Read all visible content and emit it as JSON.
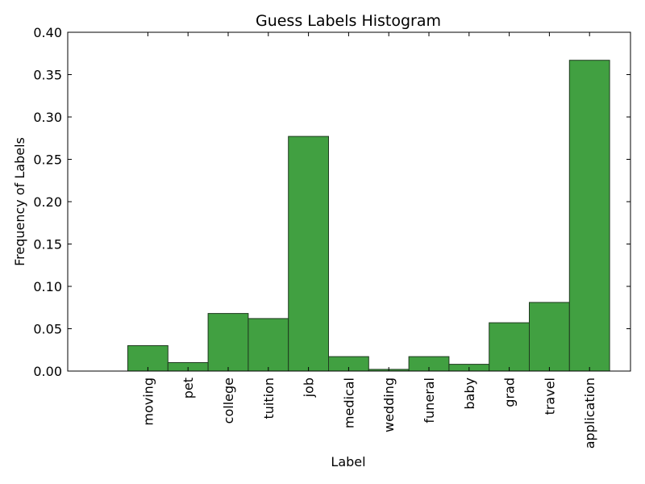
{
  "chart_data": {
    "type": "bar",
    "title": "Guess Labels Histogram",
    "xlabel": "Label",
    "ylabel": "Frequency of Labels",
    "categories": [
      "moving",
      "pet",
      "college",
      "tuition",
      "job",
      "medical",
      "wedding",
      "funeral",
      "baby",
      "grad",
      "travel",
      "application"
    ],
    "values": [
      0.03,
      0.01,
      0.068,
      0.062,
      0.277,
      0.017,
      0.002,
      0.017,
      0.008,
      0.057,
      0.081,
      0.367
    ],
    "ylim": [
      0,
      0.4
    ],
    "yticks": [
      "0.00",
      "0.05",
      "0.10",
      "0.15",
      "0.20",
      "0.25",
      "0.30",
      "0.35",
      "0.40"
    ],
    "grid": false,
    "bar_color": "#41a041",
    "edge_color": "#1f3a1f"
  }
}
